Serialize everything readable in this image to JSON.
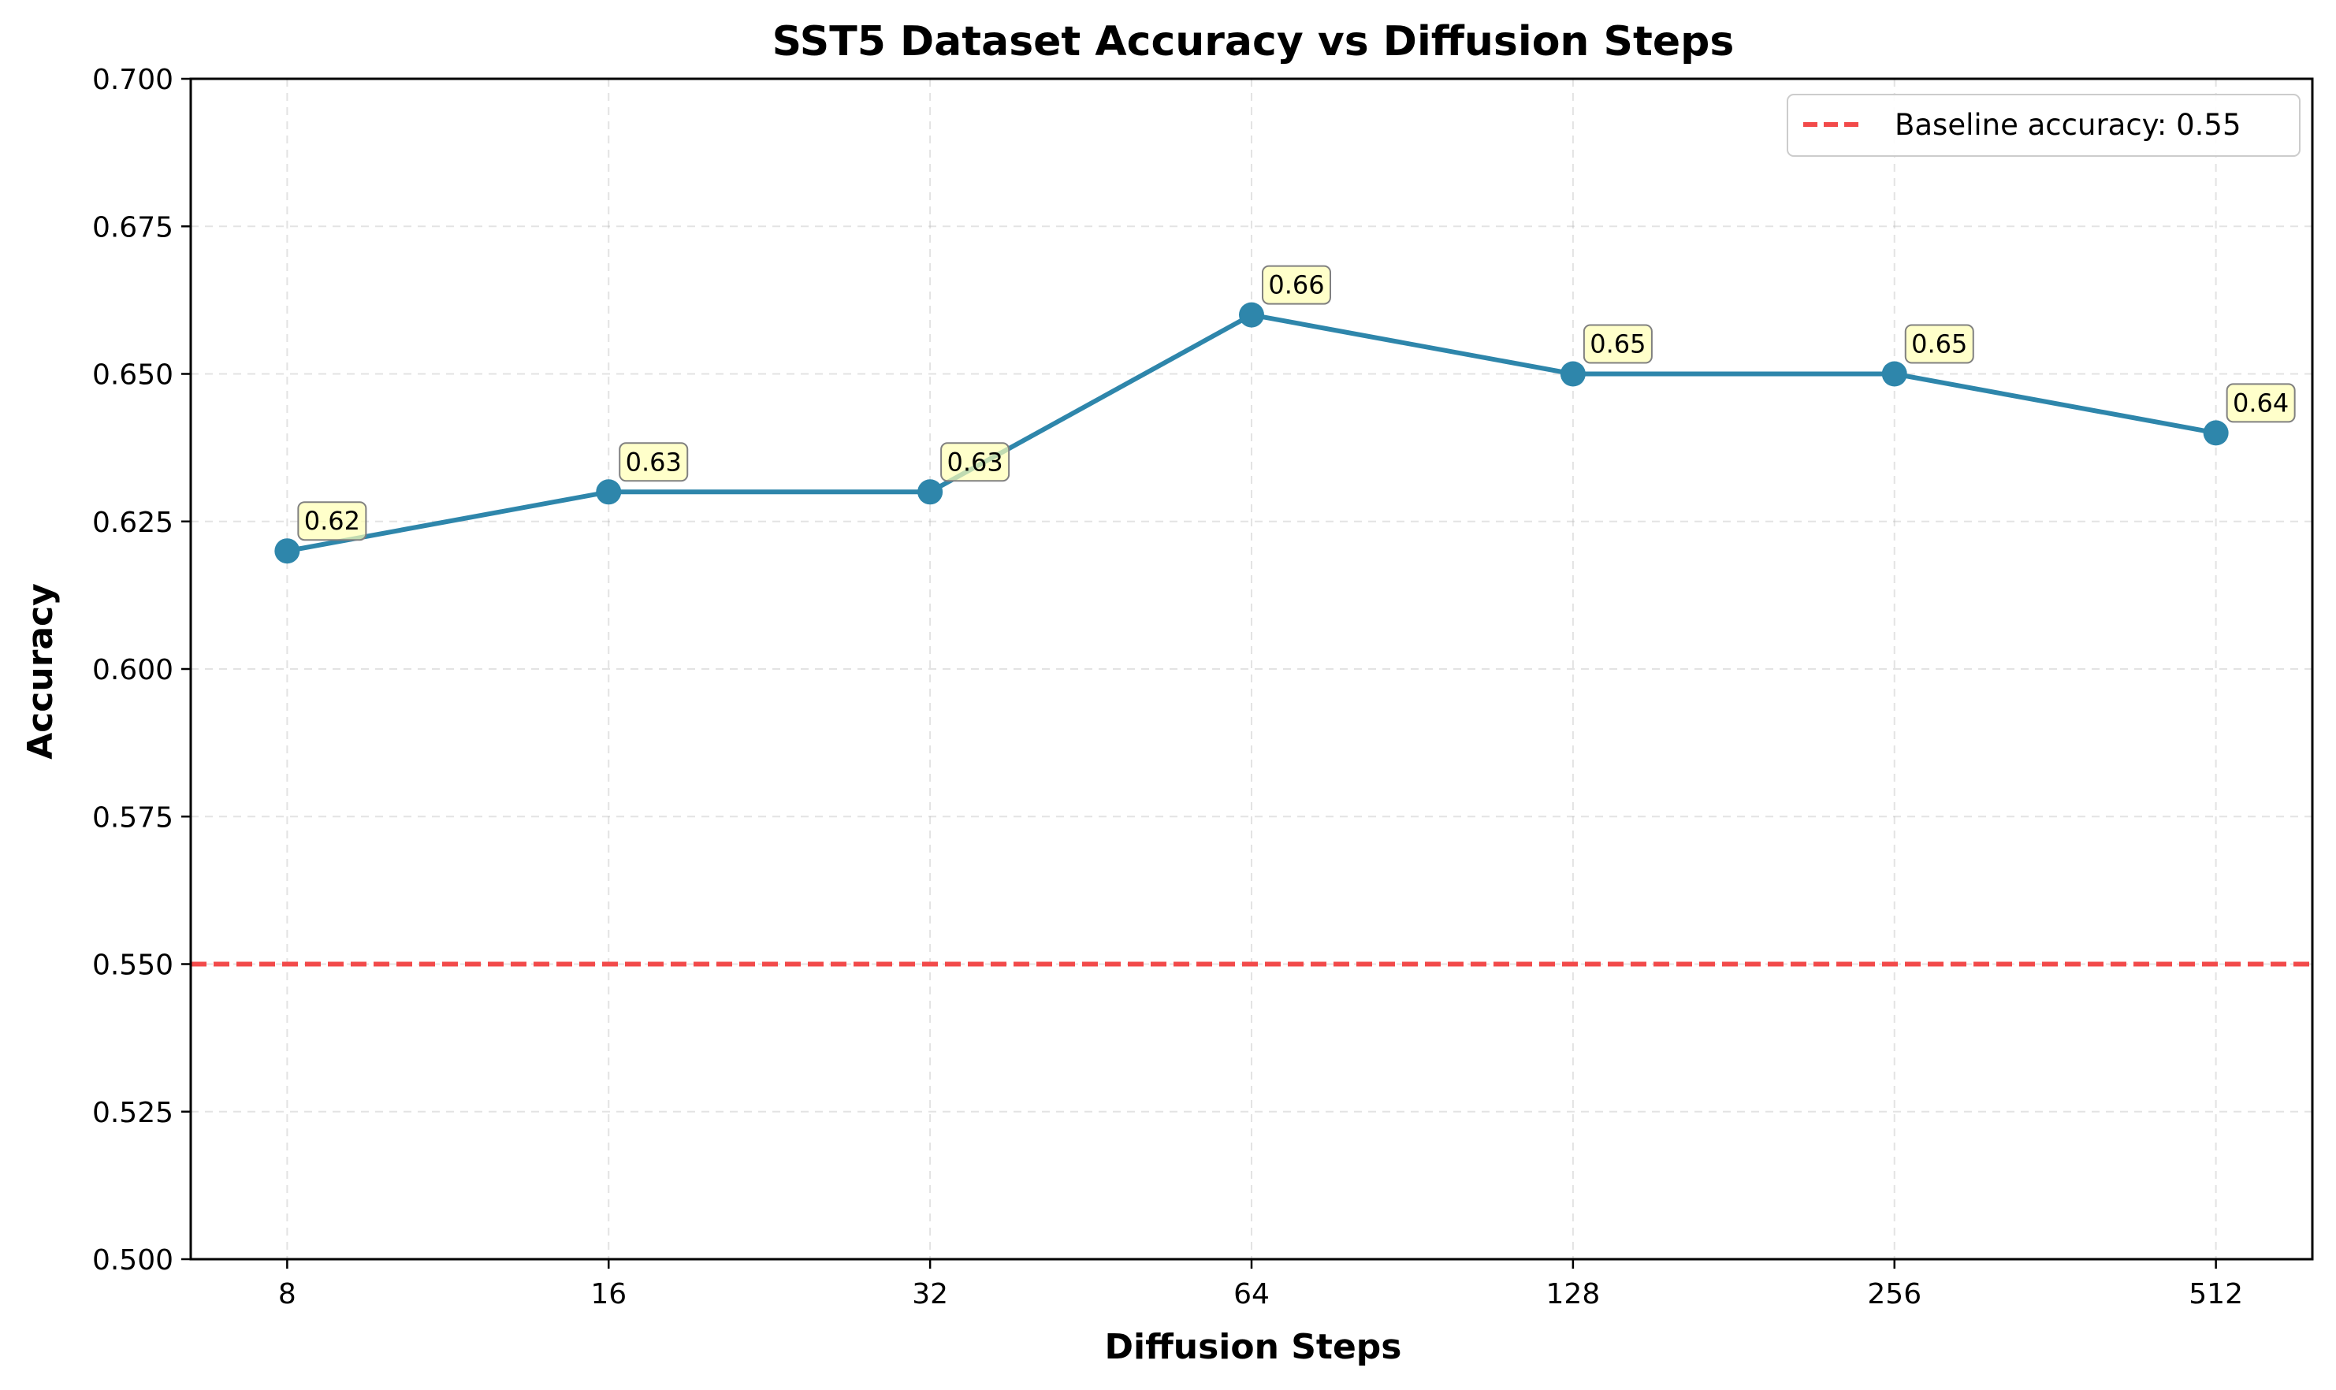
{
  "chart_data": {
    "type": "line",
    "title": "SST5 Dataset Accuracy vs Diffusion Steps",
    "xlabel": "Diffusion Steps",
    "ylabel": "Accuracy",
    "categories": [
      "8",
      "16",
      "32",
      "64",
      "128",
      "256",
      "512"
    ],
    "series": [
      {
        "values": [
          0.62,
          0.63,
          0.63,
          0.66,
          0.65,
          0.65,
          0.64
        ],
        "data_labels": [
          "0.62",
          "0.63",
          "0.63",
          "0.66",
          "0.65",
          "0.65",
          "0.64"
        ],
        "color": "#2e86ab",
        "marker": "circle"
      }
    ],
    "baseline": {
      "value": 0.55,
      "label": "Baseline accuracy: 0.55",
      "color": "#f24a4a",
      "style": "dashed"
    },
    "ylim": [
      0.5,
      0.7
    ],
    "yticks": [
      "0.500",
      "0.525",
      "0.550",
      "0.575",
      "0.600",
      "0.625",
      "0.650",
      "0.675",
      "0.700"
    ],
    "ytick_values": [
      0.5,
      0.525,
      0.55,
      0.575,
      0.6,
      0.625,
      0.65,
      0.675,
      0.7
    ],
    "grid": true,
    "legend_position": "top-right",
    "data_label_bg": "#ffffb3"
  }
}
